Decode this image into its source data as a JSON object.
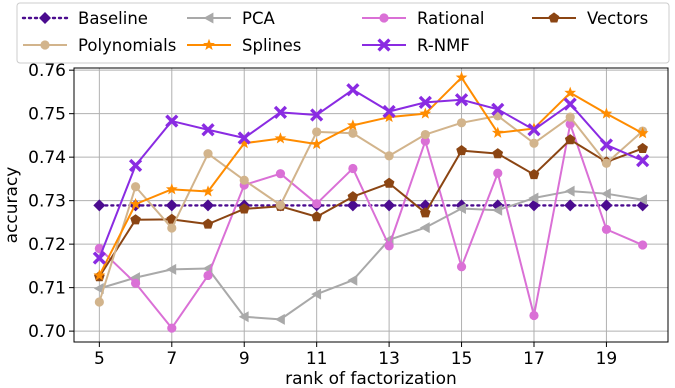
{
  "chart_data": {
    "type": "line",
    "xlabel": "rank of factorization",
    "ylabel": "accuracy",
    "xlim": [
      4.3,
      20.7
    ],
    "ylim": [
      0.6975,
      0.7605
    ],
    "xticks": [
      5,
      7,
      9,
      11,
      13,
      15,
      17,
      19
    ],
    "xtick_labels": [
      "5",
      "7",
      "9",
      "11",
      "13",
      "15",
      "17",
      "19"
    ],
    "yticks": [
      0.7,
      0.71,
      0.72,
      0.73,
      0.74,
      0.75,
      0.76
    ],
    "ytick_labels": [
      "0.70",
      "0.71",
      "0.72",
      "0.73",
      "0.74",
      "0.75",
      "0.76"
    ],
    "grid": true,
    "legend_placement": "top, outside plot, 4 columns",
    "x": [
      5,
      6,
      7,
      8,
      9,
      10,
      11,
      12,
      13,
      14,
      15,
      16,
      17,
      18,
      19,
      20
    ],
    "series": [
      {
        "name": "Baseline",
        "color": "#4b0c8f",
        "marker": "diamond",
        "dashed": true,
        "values": [
          0.7289,
          0.7289,
          0.7289,
          0.7289,
          0.7289,
          0.7289,
          0.7289,
          0.7289,
          0.7289,
          0.7289,
          0.7289,
          0.7289,
          0.7289,
          0.7289,
          0.7289,
          0.7289
        ]
      },
      {
        "name": "PCA",
        "color": "#a9a9a9",
        "marker": "triangle-left",
        "dashed": false,
        "values": [
          0.7098,
          0.7123,
          0.7142,
          0.7144,
          0.7033,
          0.7027,
          0.7085,
          0.7117,
          0.721,
          0.7238,
          0.7282,
          0.7278,
          0.7306,
          0.7322,
          0.7316,
          0.7302
        ]
      },
      {
        "name": "Rational",
        "color": "#da70d6",
        "marker": "circle",
        "dashed": false,
        "values": [
          0.719,
          0.711,
          0.7007,
          0.7128,
          0.7336,
          0.7362,
          0.7293,
          0.7374,
          0.7196,
          0.7437,
          0.7148,
          0.7363,
          0.7036,
          0.7476,
          0.7234,
          0.7198
        ]
      },
      {
        "name": "Vectors",
        "color": "#8b4513",
        "marker": "pentagon",
        "dashed": false,
        "values": [
          0.7125,
          0.7256,
          0.7257,
          0.7246,
          0.7281,
          0.7287,
          0.7263,
          0.7309,
          0.734,
          0.7272,
          0.7415,
          0.7408,
          0.736,
          0.744,
          0.7389,
          0.742
        ]
      },
      {
        "name": "Polynomials",
        "color": "#d2b48c",
        "marker": "circle",
        "dashed": false,
        "values": [
          0.7067,
          0.7332,
          0.7237,
          0.7408,
          0.7347,
          0.729,
          0.7458,
          0.7455,
          0.7403,
          0.7452,
          0.7479,
          0.7495,
          0.7432,
          0.7492,
          0.7386,
          0.746
        ]
      },
      {
        "name": "Splines",
        "color": "#ff8c00",
        "marker": "star",
        "dashed": false,
        "values": [
          0.7128,
          0.7292,
          0.7326,
          0.7321,
          0.7432,
          0.7443,
          0.743,
          0.7473,
          0.7492,
          0.75,
          0.7583,
          0.7456,
          0.7466,
          0.7548,
          0.75,
          0.7455
        ]
      },
      {
        "name": "R-NMF",
        "color": "#8a2be2",
        "marker": "x",
        "dashed": false,
        "values": [
          0.7168,
          0.7381,
          0.7483,
          0.7463,
          0.7444,
          0.7503,
          0.7497,
          0.7555,
          0.7505,
          0.7526,
          0.7532,
          0.751,
          0.7463,
          0.7522,
          0.7428,
          0.7392
        ]
      }
    ]
  }
}
